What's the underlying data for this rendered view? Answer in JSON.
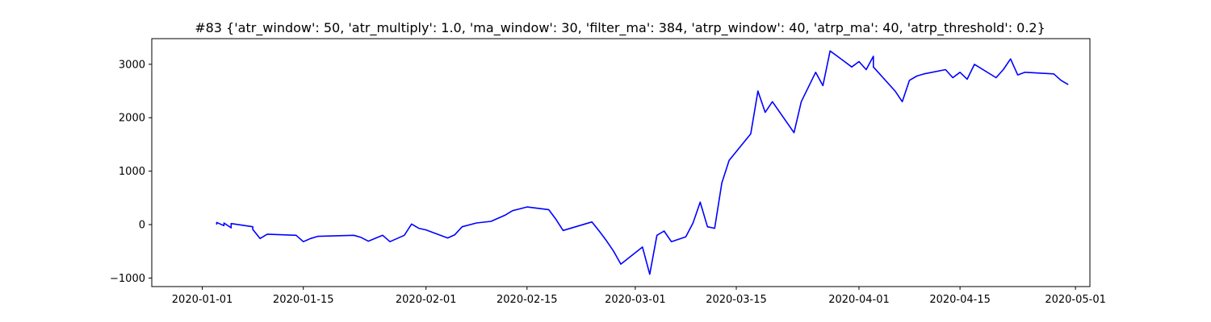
{
  "chart_data": {
    "type": "line",
    "title": "#83 {'atr_window': 50, 'atr_multiply': 1.0, 'ma_window': 30, 'filter_ma': 384, 'atrp_window': 40, 'atrp_ma': 40, 'atrp_threshold': 0.2}",
    "xlabel": "",
    "ylabel": "",
    "xlim": [
      "2019-12-25",
      "2020-05-03"
    ],
    "ylim": [
      -1160,
      3480
    ],
    "grid": false,
    "x_ticks": [
      "2020-01-01",
      "2020-01-15",
      "2020-02-01",
      "2020-02-15",
      "2020-03-01",
      "2020-03-15",
      "2020-04-01",
      "2020-04-15",
      "2020-05-01"
    ],
    "y_ticks": [
      -1000,
      0,
      1000,
      2000,
      3000
    ],
    "series": [
      {
        "color": "#0000ff",
        "x": [
          "2020-01-03",
          "2020-01-03",
          "2020-01-04",
          "2020-01-04",
          "2020-01-05",
          "2020-01-05",
          "2020-01-08",
          "2020-01-08",
          "2020-01-09",
          "2020-01-10",
          "2020-01-14",
          "2020-01-15",
          "2020-01-16",
          "2020-01-17",
          "2020-01-22",
          "2020-01-23",
          "2020-01-24",
          "2020-01-26",
          "2020-01-27",
          "2020-01-29",
          "2020-01-30",
          "2020-01-31",
          "2020-02-01",
          "2020-02-04",
          "2020-02-05",
          "2020-02-06",
          "2020-02-08",
          "2020-02-10",
          "2020-02-12",
          "2020-02-13",
          "2020-02-15",
          "2020-02-18",
          "2020-02-19",
          "2020-02-20",
          "2020-02-24",
          "2020-02-25",
          "2020-02-26",
          "2020-02-27",
          "2020-02-28",
          "2020-03-02",
          "2020-03-03",
          "2020-03-04",
          "2020-03-05",
          "2020-03-06",
          "2020-03-08",
          "2020-03-09",
          "2020-03-10",
          "2020-03-11",
          "2020-03-12",
          "2020-03-13",
          "2020-03-14",
          "2020-03-17",
          "2020-03-18",
          "2020-03-19",
          "2020-03-20",
          "2020-03-23",
          "2020-03-24",
          "2020-03-26",
          "2020-03-27",
          "2020-03-28",
          "2020-03-29",
          "2020-03-30",
          "2020-03-31",
          "2020-04-01",
          "2020-04-02",
          "2020-04-03",
          "2020-04-03",
          "2020-04-06",
          "2020-04-07",
          "2020-04-08",
          "2020-04-09",
          "2020-04-10",
          "2020-04-13",
          "2020-04-14",
          "2020-04-15",
          "2020-04-16",
          "2020-04-17",
          "2020-04-20",
          "2020-04-21",
          "2020-04-22",
          "2020-04-23",
          "2020-04-24",
          "2020-04-28",
          "2020-04-29",
          "2020-04-30"
        ],
        "values": [
          0,
          40,
          -20,
          30,
          -60,
          20,
          -40,
          -90,
          -260,
          -180,
          -200,
          -320,
          -260,
          -220,
          -200,
          -240,
          -310,
          -200,
          -320,
          -200,
          10,
          -70,
          -100,
          -250,
          -190,
          -40,
          30,
          60,
          180,
          260,
          330,
          280,
          100,
          -110,
          50,
          -120,
          -300,
          -500,
          -740,
          -420,
          -930,
          -200,
          -120,
          -320,
          -230,
          30,
          420,
          -40,
          -70,
          780,
          1200,
          1700,
          2500,
          2100,
          2300,
          1720,
          2300,
          2850,
          2600,
          3250,
          3150,
          3050,
          2950,
          3050,
          2900,
          3150,
          2950,
          2500,
          2300,
          2700,
          2780,
          2820,
          2900,
          2750,
          2850,
          2720,
          3000,
          2750,
          2900,
          3100,
          2800,
          2850,
          2820,
          2700,
          2620
        ]
      }
    ]
  }
}
